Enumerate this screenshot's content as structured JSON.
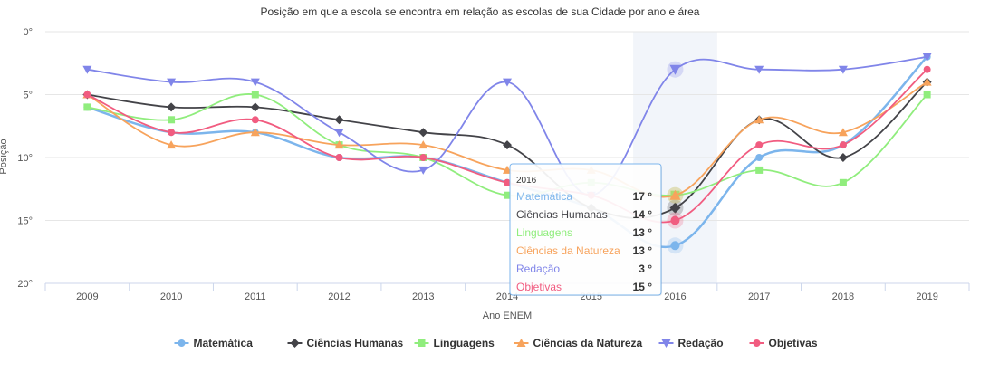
{
  "chart_data": {
    "type": "line",
    "title": "Posição em que a escola se encontra em relação as escolas de sua Cidade por ano e área",
    "xlabel": "Ano ENEM",
    "ylabel": "Posição",
    "categories": [
      "2009",
      "2010",
      "2011",
      "2012",
      "2013",
      "2014",
      "2015",
      "2016",
      "2017",
      "2018",
      "2019"
    ],
    "y_axis": {
      "reversed": true,
      "ylim": [
        0,
        20
      ],
      "ticks": [
        0,
        5,
        10,
        15,
        20
      ],
      "tick_labels": [
        "0°",
        "5°",
        "10°",
        "15°",
        "20°"
      ]
    },
    "grid": true,
    "legend_position": "bottom",
    "highlighted_category": "2016",
    "series": [
      {
        "name": "Matemática",
        "color": "#7cb5ec",
        "marker": "circle",
        "values": [
          6,
          8,
          8,
          10,
          10,
          12,
          14,
          17,
          10,
          9,
          2
        ]
      },
      {
        "name": "Ciências Humanas",
        "color": "#434348",
        "marker": "diamond",
        "values": [
          5,
          6,
          6,
          7,
          8,
          9,
          14,
          14,
          7,
          10,
          4
        ]
      },
      {
        "name": "Linguagens",
        "color": "#90ed7d",
        "marker": "square",
        "values": [
          6,
          7,
          5,
          9,
          10,
          13,
          12,
          13,
          11,
          12,
          5
        ]
      },
      {
        "name": "Ciências da Natureza",
        "color": "#f7a35c",
        "marker": "triangle",
        "values": [
          5,
          9,
          8,
          9,
          9,
          11,
          11,
          13,
          7,
          8,
          4
        ]
      },
      {
        "name": "Redação",
        "color": "#8085e9",
        "marker": "triangle-down",
        "values": [
          3,
          4,
          4,
          8,
          11,
          4,
          13,
          3,
          3,
          3,
          2
        ]
      },
      {
        "name": "Objetivas",
        "color": "#f15c80",
        "marker": "circle",
        "values": [
          5,
          8,
          7,
          10,
          10,
          12,
          13,
          15,
          9,
          9,
          3
        ]
      }
    ],
    "tooltip": {
      "header": "2016",
      "rows": [
        {
          "name": "Matemática",
          "value": "17 °"
        },
        {
          "name": "Ciências Humanas",
          "value": "14 °"
        },
        {
          "name": "Linguagens",
          "value": "13 °"
        },
        {
          "name": "Ciências da Natureza",
          "value": "13 °"
        },
        {
          "name": "Redação",
          "value": "3 °"
        },
        {
          "name": "Objetivas",
          "value": "15 °"
        }
      ]
    }
  }
}
